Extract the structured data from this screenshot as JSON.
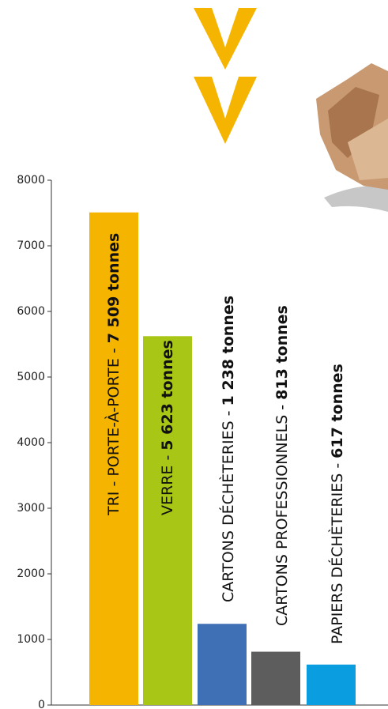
{
  "chart_data": {
    "type": "bar",
    "categories": [
      "TRI - PORTE-À-PORTE -",
      "VERRE -",
      "CARTONS DÉCHÈTERIES -",
      "CARTONS PROFESSIONNELS -",
      "PAPIERS DÉCHÈTERIES -"
    ],
    "values": [
      7509,
      5623,
      1238,
      813,
      617
    ],
    "value_labels": [
      "7 509 tonnes",
      "5 623 tonnes",
      "1 238 tonnes",
      "813 tonnes",
      "617 tonnes"
    ],
    "colors": [
      "#f5b400",
      "#a8c616",
      "#3f6fb5",
      "#5d5d5d",
      "#0a9ee0"
    ],
    "ylim": [
      0,
      8000
    ],
    "yticks": [
      0,
      1000,
      2000,
      3000,
      4000,
      5000,
      6000,
      7000,
      8000
    ]
  }
}
